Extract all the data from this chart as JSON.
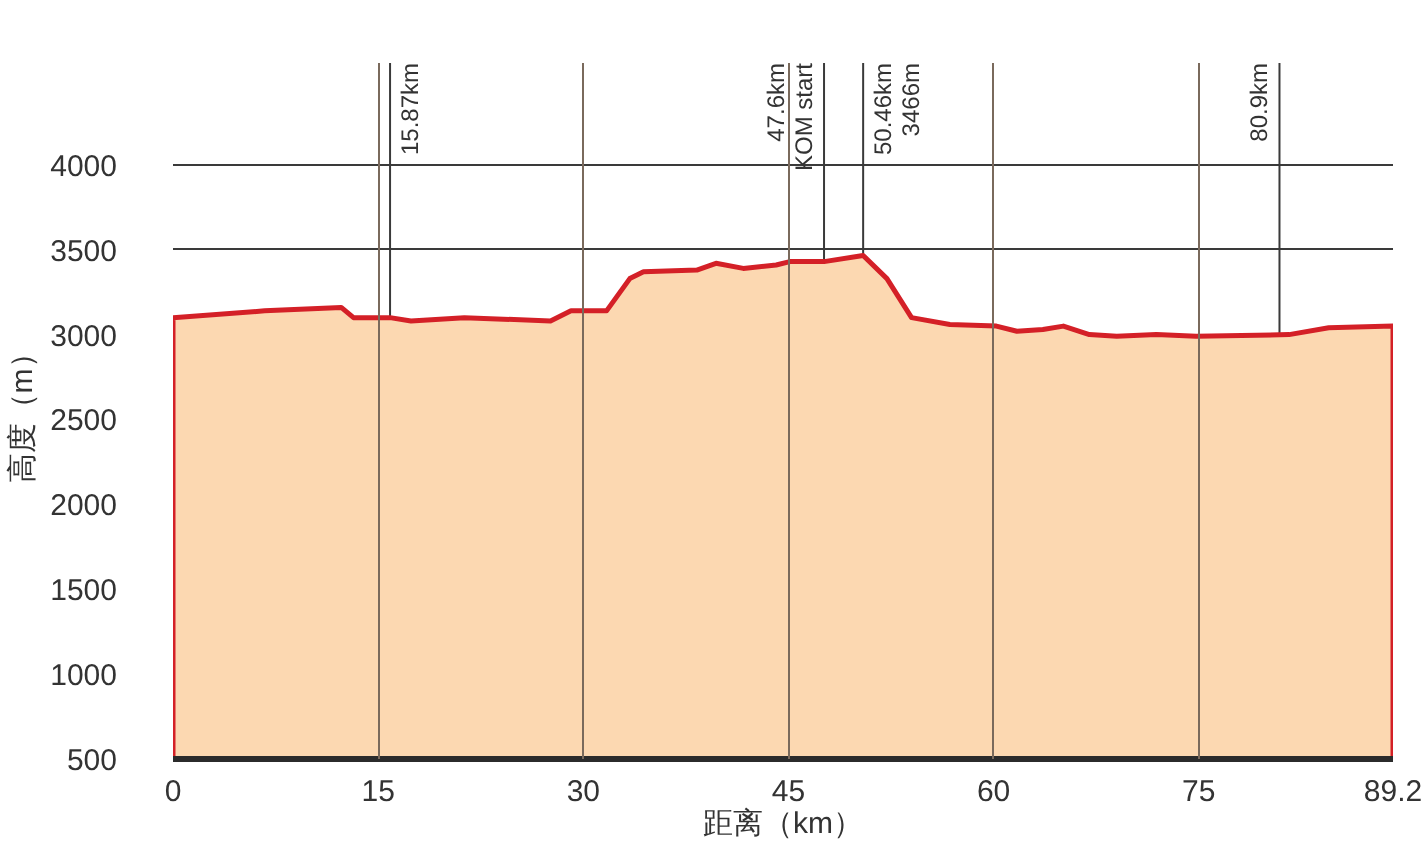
{
  "chart_data": {
    "type": "area",
    "xlabel": "距离（km）",
    "ylabel": "高度（m）",
    "x": [
      0,
      6.7,
      12.3,
      13.2,
      15.87,
      17.4,
      21.3,
      27.6,
      29.1,
      31.7,
      33.4,
      34.4,
      38.3,
      39.7,
      41.7,
      44.1,
      45.1,
      47.6,
      50.46,
      52.2,
      54.0,
      56.8,
      60.2,
      61.7,
      63.6,
      65.1,
      67.0,
      69.0,
      71.9,
      74.8,
      81.6,
      84.5,
      89.2
    ],
    "values": [
      3100,
      3140,
      3160,
      3100,
      3100,
      3080,
      3100,
      3080,
      3140,
      3140,
      3330,
      3370,
      3380,
      3420,
      3390,
      3410,
      3430,
      3430,
      3466,
      3330,
      3100,
      3060,
      3050,
      3020,
      3030,
      3050,
      3000,
      2990,
      3000,
      2990,
      3000,
      3040,
      3050
    ],
    "color": "#fcd8b1",
    "xlim": [
      0,
      89.2
    ],
    "xticks": [
      0,
      15,
      30,
      45,
      60,
      75,
      89.2
    ],
    "ylim": [
      500,
      4600
    ],
    "yticks": [
      500,
      1000,
      1500,
      2000,
      2500,
      3000,
      3500,
      4000
    ],
    "grid": true,
    "ref_lines": [
      {
        "axis": "x",
        "value": 15.87,
        "label": "15.87km"
      },
      {
        "axis": "x",
        "value": 47.6,
        "label": "47.6km\nKOM start"
      },
      {
        "axis": "x",
        "value": 50.46,
        "label": "50.46km\n3466m"
      },
      {
        "axis": "x",
        "value": 80.9,
        "label": "80.9km"
      }
    ]
  }
}
